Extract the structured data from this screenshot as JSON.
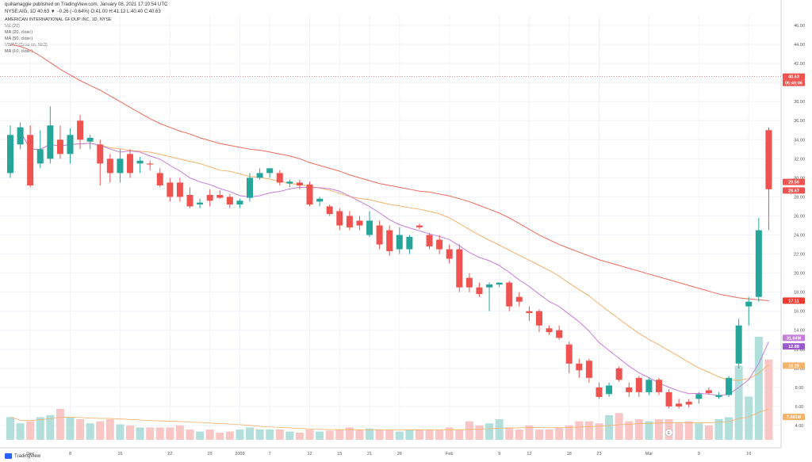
{
  "header": {
    "author_line": "quillamaggie published on TradingView.com, January 08, 2021 17:10:54 UTC",
    "symbol_line": "NYSE:AIG, 1D 40.63 ▼ −0.26 (−0.64%) O:41.00 H:41.12 L:40.40 C:40.63",
    "chart_title": "AMERICAN INTERNATIONAL GROUP INC, 1D, NYSE",
    "indicators": [
      "Vol (20)",
      "MA (20, close)",
      "MA (50, close)",
      "VWAP (Session, hlc3)",
      "MA (10, close)"
    ]
  },
  "footer": {
    "brand": "TradingView"
  },
  "colors": {
    "up": "#26a69a",
    "down": "#ef5350",
    "up_volume": "#b2dfdb",
    "down_volume": "#f8c6c4",
    "ma10": "#c77ddb",
    "ma20": "#f5b26b",
    "ma50": "#ef6a5a",
    "price_line": "#ef5350",
    "grid": "#f0f3fa"
  },
  "chart_data": {
    "type": "candlestick",
    "y_range": [
      2.5,
      47
    ],
    "y_ticks": [
      "46.00",
      "44.00",
      "42.00",
      "40.00",
      "38.00",
      "36.00",
      "34.00",
      "32.00",
      "30.00",
      "28.00",
      "26.00",
      "24.00",
      "22.00",
      "20.00",
      "18.00",
      "16.00",
      "14.00",
      "12.00",
      "10.00",
      "8.00",
      "6.00",
      "4.00"
    ],
    "x_ticks": [
      {
        "i": 2,
        "label": "Dec"
      },
      {
        "i": 6,
        "label": "8"
      },
      {
        "i": 11,
        "label": "15"
      },
      {
        "i": 16,
        "label": "22"
      },
      {
        "i": 20,
        "label": "29"
      },
      {
        "i": 23,
        "label": "2009"
      },
      {
        "i": 26,
        "label": "7"
      },
      {
        "i": 30,
        "label": "12"
      },
      {
        "i": 33,
        "label": "15"
      },
      {
        "i": 36,
        "label": "21"
      },
      {
        "i": 39,
        "label": "26"
      },
      {
        "i": 44,
        "label": "Feb"
      },
      {
        "i": 49,
        "label": "9"
      },
      {
        "i": 52,
        "label": "12"
      },
      {
        "i": 56,
        "label": "18"
      },
      {
        "i": 59,
        "label": "23"
      },
      {
        "i": 64,
        "label": "Mar"
      },
      {
        "i": 69,
        "label": "9"
      },
      {
        "i": 74,
        "label": "16"
      }
    ],
    "candles": [
      {
        "d": "Dec",
        "o": 30.5,
        "h": 35.5,
        "l": 30.0,
        "c": 34.5
      },
      {
        "d": "",
        "o": 33.5,
        "h": 35.8,
        "l": 33.0,
        "c": 35.3
      },
      {
        "d": "",
        "o": 34.5,
        "h": 35.5,
        "l": 29.0,
        "c": 29.2
      },
      {
        "d": "",
        "o": 31.5,
        "h": 35.0,
        "l": 31.0,
        "c": 33.0
      },
      {
        "d": "",
        "o": 32.0,
        "h": 37.5,
        "l": 31.5,
        "c": 35.5
      },
      {
        "d": "",
        "o": 34.0,
        "h": 35.5,
        "l": 32.0,
        "c": 32.5
      },
      {
        "d": "8",
        "o": 32.5,
        "h": 35.2,
        "l": 31.5,
        "c": 34.5
      },
      {
        "d": "",
        "o": 36.0,
        "h": 36.6,
        "l": 33.0,
        "c": 34.0
      },
      {
        "d": "",
        "o": 33.8,
        "h": 34.5,
        "l": 33.0,
        "c": 34.2
      },
      {
        "d": "",
        "o": 33.5,
        "h": 34.0,
        "l": 29.2,
        "c": 31.5
      },
      {
        "d": "",
        "o": 32.0,
        "h": 32.5,
        "l": 29.5,
        "c": 30.5
      },
      {
        "d": "15",
        "o": 30.5,
        "h": 33.0,
        "l": 29.5,
        "c": 32.0
      },
      {
        "d": "",
        "o": 32.5,
        "h": 33.0,
        "l": 30.0,
        "c": 30.5
      },
      {
        "d": "",
        "o": 31.5,
        "h": 32.2,
        "l": 30.5,
        "c": 31.8
      },
      {
        "d": "",
        "o": 31.5,
        "h": 31.8,
        "l": 30.8,
        "c": 31.4
      },
      {
        "d": "",
        "o": 30.5,
        "h": 31.0,
        "l": 29.0,
        "c": 29.2
      },
      {
        "d": "22",
        "o": 29.5,
        "h": 30.0,
        "l": 27.5,
        "c": 28.0
      },
      {
        "d": "",
        "o": 29.5,
        "h": 30.0,
        "l": 27.5,
        "c": 28.0
      },
      {
        "d": "",
        "o": 28.2,
        "h": 29.0,
        "l": 26.8,
        "c": 27.0
      },
      {
        "d": "",
        "o": 27.2,
        "h": 27.8,
        "l": 26.8,
        "c": 27.4
      },
      {
        "d": "29",
        "o": 28.2,
        "h": 28.8,
        "l": 27.0,
        "c": 27.6
      },
      {
        "d": "",
        "o": 28.2,
        "h": 28.7,
        "l": 27.8,
        "c": 27.9
      },
      {
        "d": "",
        "o": 28.0,
        "h": 28.3,
        "l": 26.8,
        "c": 27.2
      },
      {
        "d": "2009",
        "o": 27.2,
        "h": 27.8,
        "l": 26.8,
        "c": 27.6
      },
      {
        "d": "",
        "o": 27.9,
        "h": 30.5,
        "l": 27.5,
        "c": 30.0
      },
      {
        "d": "",
        "o": 30.0,
        "h": 31.0,
        "l": 29.8,
        "c": 30.5
      },
      {
        "d": "7",
        "o": 30.5,
        "h": 31.0,
        "l": 30.0,
        "c": 31.0
      },
      {
        "d": "",
        "o": 30.5,
        "h": 30.8,
        "l": 29.2,
        "c": 29.5
      },
      {
        "d": "",
        "o": 29.4,
        "h": 29.8,
        "l": 29.0,
        "c": 29.6
      },
      {
        "d": "",
        "o": 29.5,
        "h": 29.8,
        "l": 28.8,
        "c": 29.2
      },
      {
        "d": "12",
        "o": 29.3,
        "h": 29.6,
        "l": 27.0,
        "c": 27.2
      },
      {
        "d": "",
        "o": 27.5,
        "h": 28.0,
        "l": 27.0,
        "c": 27.8
      },
      {
        "d": "",
        "o": 27.0,
        "h": 27.2,
        "l": 26.0,
        "c": 26.2
      },
      {
        "d": "15",
        "o": 26.5,
        "h": 26.8,
        "l": 24.5,
        "c": 25.0
      },
      {
        "d": "",
        "o": 26.0,
        "h": 26.5,
        "l": 24.5,
        "c": 24.8
      },
      {
        "d": "",
        "o": 25.5,
        "h": 26.0,
        "l": 24.5,
        "c": 25.0
      },
      {
        "d": "21",
        "o": 24.0,
        "h": 26.5,
        "l": 23.8,
        "c": 25.5
      },
      {
        "d": "",
        "o": 25.0,
        "h": 25.5,
        "l": 22.5,
        "c": 23.0
      },
      {
        "d": "",
        "o": 24.5,
        "h": 25.0,
        "l": 21.8,
        "c": 22.3
      },
      {
        "d": "26",
        "o": 22.5,
        "h": 24.8,
        "l": 22.0,
        "c": 24.0
      },
      {
        "d": "",
        "o": 22.5,
        "h": 24.0,
        "l": 22.0,
        "c": 23.8
      },
      {
        "d": "",
        "o": 25.0,
        "h": 25.2,
        "l": 24.6,
        "c": 24.8
      },
      {
        "d": "",
        "o": 24.0,
        "h": 24.2,
        "l": 22.5,
        "c": 22.8
      },
      {
        "d": "",
        "o": 23.5,
        "h": 24.0,
        "l": 22.0,
        "c": 22.5
      },
      {
        "d": "Feb",
        "o": 22.5,
        "h": 23.0,
        "l": 21.0,
        "c": 21.5
      },
      {
        "d": "",
        "o": 22.5,
        "h": 23.0,
        "l": 18.0,
        "c": 18.5
      },
      {
        "d": "",
        "o": 19.5,
        "h": 20.0,
        "l": 18.0,
        "c": 18.5
      },
      {
        "d": "",
        "o": 18.5,
        "h": 19.0,
        "l": 17.5,
        "c": 17.8
      },
      {
        "d": "",
        "o": 18.5,
        "h": 19.0,
        "l": 16.0,
        "c": 18.8
      },
      {
        "d": "9",
        "o": 18.8,
        "h": 19.0,
        "l": 18.5,
        "c": 19.0
      },
      {
        "d": "",
        "o": 19.0,
        "h": 19.2,
        "l": 16.0,
        "c": 16.5
      },
      {
        "d": "",
        "o": 17.5,
        "h": 18.0,
        "l": 16.5,
        "c": 17.0
      },
      {
        "d": "12",
        "o": 16.0,
        "h": 16.5,
        "l": 15.0,
        "c": 15.8
      },
      {
        "d": "",
        "o": 16.0,
        "h": 16.2,
        "l": 13.8,
        "c": 14.5
      },
      {
        "d": "",
        "o": 14.2,
        "h": 14.5,
        "l": 13.5,
        "c": 13.8
      },
      {
        "d": "",
        "o": 14.0,
        "h": 14.5,
        "l": 13.0,
        "c": 13.2
      },
      {
        "d": "18",
        "o": 12.5,
        "h": 12.8,
        "l": 9.5,
        "c": 10.5
      },
      {
        "d": "",
        "o": 10.5,
        "h": 11.0,
        "l": 9.0,
        "c": 9.8
      },
      {
        "d": "",
        "o": 10.8,
        "h": 11.0,
        "l": 8.5,
        "c": 9.0
      },
      {
        "d": "23",
        "o": 8.0,
        "h": 8.5,
        "l": 6.8,
        "c": 7.0
      },
      {
        "d": "",
        "o": 7.3,
        "h": 8.5,
        "l": 7.0,
        "c": 8.2
      },
      {
        "d": "",
        "o": 10.0,
        "h": 10.2,
        "l": 8.6,
        "c": 8.8
      },
      {
        "d": "",
        "o": 8.0,
        "h": 8.5,
        "l": 7.0,
        "c": 7.5
      },
      {
        "d": "",
        "o": 9.0,
        "h": 9.2,
        "l": 7.0,
        "c": 7.5
      },
      {
        "d": "Mar",
        "o": 7.5,
        "h": 9.0,
        "l": 7.2,
        "c": 8.8
      },
      {
        "d": "",
        "o": 8.8,
        "h": 9.0,
        "l": 7.2,
        "c": 7.5
      },
      {
        "d": "",
        "o": 7.5,
        "h": 7.8,
        "l": 5.8,
        "c": 6.0
      },
      {
        "d": "",
        "o": 6.3,
        "h": 6.8,
        "l": 5.8,
        "c": 6.0
      },
      {
        "d": "",
        "o": 6.5,
        "h": 6.8,
        "l": 5.9,
        "c": 6.2
      },
      {
        "d": "9",
        "o": 6.8,
        "h": 7.5,
        "l": 6.3,
        "c": 7.3
      },
      {
        "d": "",
        "o": 7.7,
        "h": 8.0,
        "l": 7.3,
        "c": 7.4
      },
      {
        "d": "",
        "o": 7.0,
        "h": 7.5,
        "l": 6.8,
        "c": 7.2
      },
      {
        "d": "",
        "o": 7.2,
        "h": 9.2,
        "l": 7.0,
        "c": 9.0
      },
      {
        "d": "",
        "o": 10.5,
        "h": 15.2,
        "l": 10.0,
        "c": 14.5
      },
      {
        "d": "16",
        "o": 16.5,
        "h": 17.5,
        "l": 14.5,
        "c": 17.0
      },
      {
        "d": "",
        "o": 17.5,
        "h": 25.8,
        "l": 17.0,
        "c": 24.5
      },
      {
        "d": "",
        "o": 35.0,
        "h": 35.3,
        "l": 24.5,
        "c": 28.8
      }
    ],
    "volume_ratio": [
      0.22,
      0.16,
      0.18,
      0.22,
      0.24,
      0.3,
      0.22,
      0.2,
      0.16,
      0.18,
      0.2,
      0.15,
      0.14,
      0.12,
      0.12,
      0.12,
      0.12,
      0.14,
      0.1,
      0.08,
      0.1,
      0.07,
      0.08,
      0.1,
      0.12,
      0.1,
      0.1,
      0.1,
      0.08,
      0.07,
      0.1,
      0.08,
      0.09,
      0.1,
      0.12,
      0.1,
      0.11,
      0.1,
      0.1,
      0.08,
      0.1,
      0.1,
      0.1,
      0.1,
      0.12,
      0.1,
      0.18,
      0.14,
      0.16,
      0.2,
      0.12,
      0.1,
      0.14,
      0.1,
      0.1,
      0.12,
      0.14,
      0.18,
      0.18,
      0.16,
      0.24,
      0.26,
      0.18,
      0.2,
      0.18,
      0.2,
      0.2,
      0.16,
      0.18,
      0.16,
      0.14,
      0.2,
      0.22,
      0.72,
      0.42,
      1.0,
      0.78
    ],
    "series": [
      {
        "name": "MA (10, close)",
        "color": "#c77ddb"
      },
      {
        "name": "MA (20, close)",
        "color": "#f5b26b"
      },
      {
        "name": "MA (50, close)",
        "color": "#ef6a5a"
      }
    ],
    "ma50_values": [
      44.0,
      43.8,
      43.4,
      42.8,
      42.1,
      41.4,
      40.8,
      40.2,
      39.7,
      39.2,
      38.6,
      38.0,
      37.4,
      36.8,
      36.2,
      35.7,
      35.3,
      34.9,
      34.6,
      34.2,
      33.9,
      33.6,
      33.4,
      33.2,
      33.0,
      32.9,
      32.7,
      32.5,
      32.3,
      32.0,
      31.6,
      31.3,
      31.0,
      30.7,
      30.3,
      30.0,
      29.7,
      29.4,
      29.2,
      29.0,
      28.8,
      28.6,
      28.5,
      28.3,
      28.1,
      27.8,
      27.5,
      27.1,
      26.7,
      26.3,
      25.8,
      25.2,
      24.6,
      24.0,
      23.5,
      23.0,
      22.6,
      22.2,
      21.8,
      21.4,
      21.1,
      20.8,
      20.5,
      20.2,
      19.9,
      19.6,
      19.3,
      19.0,
      18.7,
      18.4,
      18.1,
      17.8,
      17.6,
      17.4,
      17.3,
      17.2,
      17.1
    ],
    "labels": {
      "last_price": "40.63",
      "last_price_value": 40.63,
      "countdown": "05:49:06",
      "tag_a": "29.56",
      "tag_a_value": 29.56,
      "tag_b": "28.67",
      "tag_b_value": 28.67,
      "tag_ma50": "17.11",
      "tag_ma50_value": 17.11,
      "tag_vol": "31.64M",
      "tag_vol_value": 13.2,
      "tag_ma10": "12.88",
      "tag_ma10_value": 12.3,
      "tag_ma20": "10.29",
      "tag_ma20_value": 10.29,
      "tag_volma": "7.491M",
      "tag_volma_value": 4.9,
      "marker": "E"
    }
  }
}
